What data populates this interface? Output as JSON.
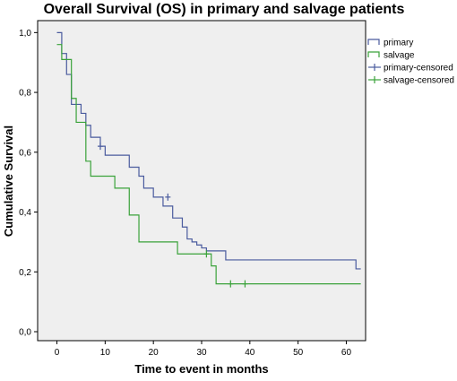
{
  "chart_data": {
    "type": "line",
    "title": "Overall Survival (OS) in primary and salvage patients",
    "xlabel": "Time to event in months",
    "ylabel": "Cumulative Survival",
    "xlim": [
      -4,
      64
    ],
    "ylim": [
      -0.03,
      1.04
    ],
    "x_ticks": [
      0,
      10,
      20,
      30,
      40,
      50,
      60
    ],
    "x_tick_labels": [
      "0",
      "10",
      "20",
      "30",
      "40",
      "50",
      "60"
    ],
    "y_ticks": [
      0,
      0.2,
      0.4,
      0.6,
      0.8,
      1.0
    ],
    "y_tick_labels": [
      "0,0",
      "0,2",
      "0,4",
      "0,6",
      "0,8",
      "1,0"
    ],
    "grid": false,
    "legend_position": "top-right",
    "series": [
      {
        "name": "primary",
        "color": "#4a5b9e",
        "step": true,
        "x": [
          0,
          1,
          2,
          3,
          5,
          6,
          7,
          9,
          10,
          15,
          17,
          18,
          20,
          22,
          24,
          26,
          27,
          28,
          29,
          30,
          31,
          35,
          62,
          63
        ],
        "y": [
          1.0,
          0.93,
          0.86,
          0.76,
          0.73,
          0.69,
          0.65,
          0.62,
          0.59,
          0.55,
          0.52,
          0.48,
          0.45,
          0.42,
          0.38,
          0.35,
          0.31,
          0.3,
          0.29,
          0.28,
          0.27,
          0.24,
          0.21,
          0.21
        ]
      },
      {
        "name": "salvage",
        "color": "#3aa23a",
        "step": true,
        "x": [
          0,
          1,
          3,
          4,
          6,
          7,
          12,
          15,
          17,
          18,
          25,
          31,
          32,
          33,
          63
        ],
        "y": [
          0.96,
          0.91,
          0.78,
          0.7,
          0.57,
          0.52,
          0.48,
          0.39,
          0.3,
          0.3,
          0.26,
          0.26,
          0.22,
          0.16,
          0.16
        ]
      }
    ],
    "censored": [
      {
        "name": "primary-censored",
        "color": "#4a5b9e",
        "x": [
          9,
          23
        ],
        "y": [
          0.62,
          0.45
        ]
      },
      {
        "name": "salvage-censored",
        "color": "#3aa23a",
        "x": [
          31,
          36,
          39
        ],
        "y": [
          0.26,
          0.16,
          0.16
        ]
      }
    ],
    "legend": [
      {
        "label": "primary",
        "color": "#4a5b9e",
        "kind": "line"
      },
      {
        "label": "salvage",
        "color": "#3aa23a",
        "kind": "line"
      },
      {
        "label": "primary-censored",
        "color": "#4a5b9e",
        "kind": "plus"
      },
      {
        "label": "salvage-censored",
        "color": "#3aa23a",
        "kind": "plus"
      }
    ],
    "plot_background": "#efefef"
  }
}
